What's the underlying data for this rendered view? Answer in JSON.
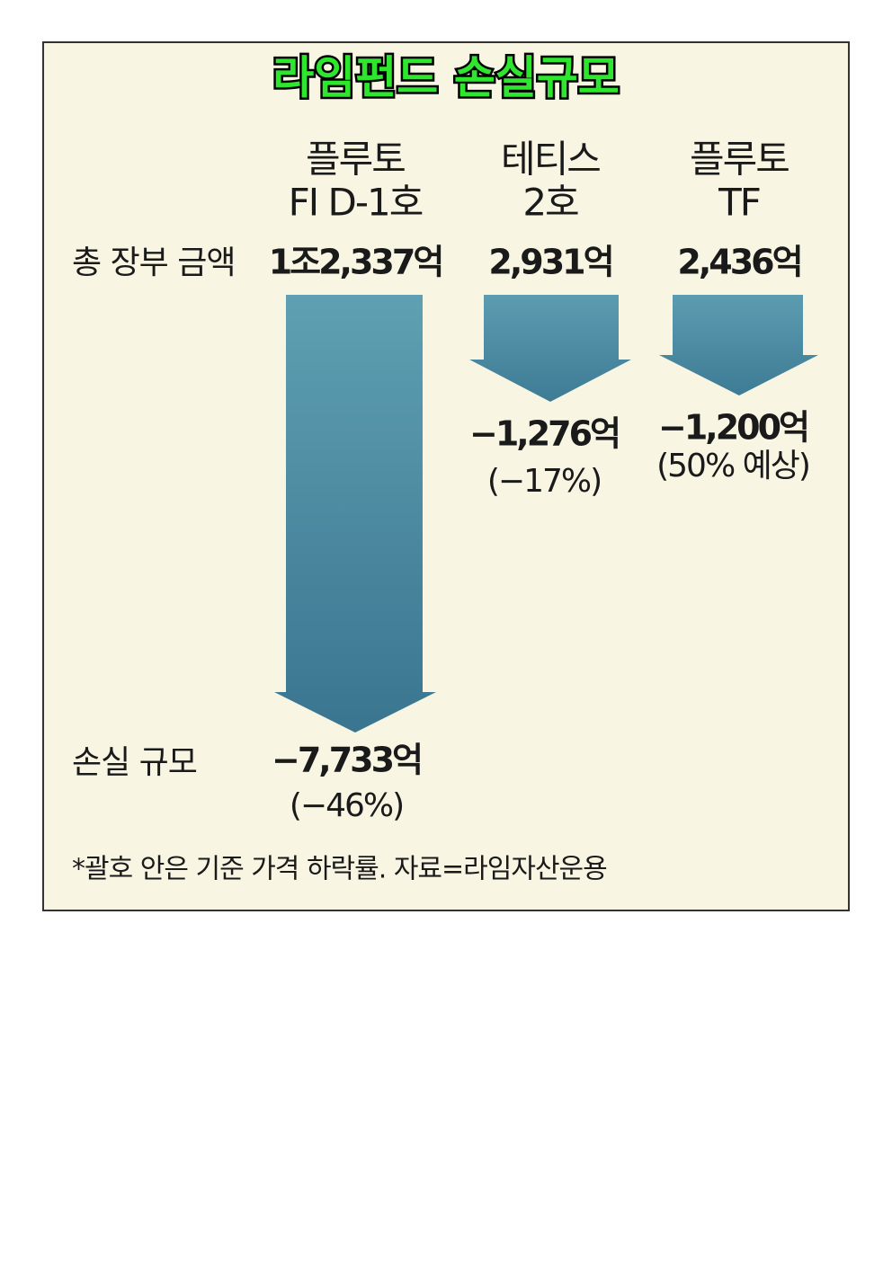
{
  "title": "라임펀드 손실규모",
  "row_labels": {
    "total": "총 장부 금액",
    "loss": "손실 규모"
  },
  "funds": [
    {
      "name": [
        "플루토",
        "FI D-1호"
      ],
      "total": "1조2,337억",
      "loss": "−7,733억",
      "rate": "(−46%)"
    },
    {
      "name": [
        "테티스",
        "2호"
      ],
      "total": "2,931억",
      "loss": "−1,276억",
      "rate": "(−17%)"
    },
    {
      "name": [
        "플루토",
        "TF"
      ],
      "total": "2,436억",
      "loss": "−1,200억",
      "rate": "(50% 예상)"
    }
  ],
  "footnote": "*괄호 안은 기준 가격 하락률. 자료=라임자산운용"
}
